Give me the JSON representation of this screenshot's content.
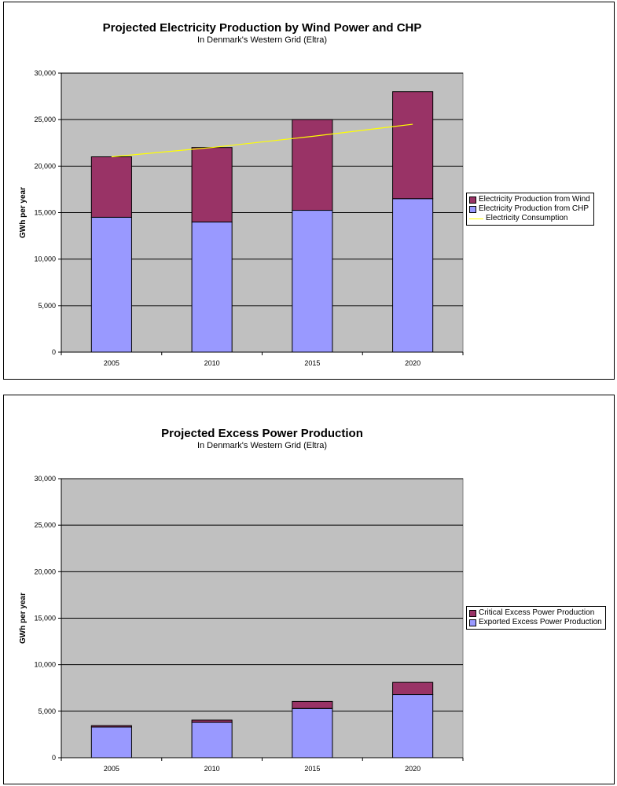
{
  "chart_data": [
    {
      "type": "bar",
      "stacked": true,
      "title": "Projected Electricity Production by Wind Power and CHP",
      "subtitle": "In Denmark's Western Grid (Eltra)",
      "xlabel": "",
      "ylabel": "GWh per year",
      "categories": [
        "2005",
        "2010",
        "2015",
        "2020"
      ],
      "ylim": [
        0,
        30000
      ],
      "yticks": [
        "0",
        "5,000",
        "10,000",
        "15,000",
        "20,000",
        "25,000",
        "30,000"
      ],
      "grid": true,
      "legend_position": "right",
      "series": [
        {
          "name": "Electricity Production from CHP",
          "kind": "bar",
          "color": "#9999FF",
          "values": [
            14500,
            14000,
            15250,
            16500
          ]
        },
        {
          "name": "Electricity Production from Wind",
          "kind": "bar",
          "color": "#993366",
          "values": [
            6500,
            8000,
            9750,
            11500
          ]
        },
        {
          "name": "Electricity Consumption",
          "kind": "line",
          "color": "#FFFF00",
          "values": [
            21000,
            22000,
            23200,
            24500
          ]
        }
      ],
      "legend_order": [
        "Electricity Production from Wind",
        "Electricity Production from CHP",
        "Electricity Consumption"
      ]
    },
    {
      "type": "bar",
      "stacked": true,
      "title": "Projected Excess Power Production",
      "subtitle": "In Denmark's Western Grid (Eltra)",
      "xlabel": "",
      "ylabel": "GWh per year",
      "categories": [
        "2005",
        "2010",
        "2015",
        "2020"
      ],
      "ylim": [
        0,
        30000
      ],
      "yticks": [
        "0",
        "5,000",
        "10,000",
        "15,000",
        "20,000",
        "25,000",
        "30,000"
      ],
      "grid": true,
      "legend_position": "right",
      "series": [
        {
          "name": "Exported Excess Power Production",
          "kind": "bar",
          "color": "#9999FF",
          "values": [
            3300,
            3800,
            5300,
            6800
          ]
        },
        {
          "name": "Critical Excess Power Production",
          "kind": "bar",
          "color": "#993366",
          "values": [
            150,
            250,
            750,
            1300
          ]
        }
      ],
      "legend_order": [
        "Critical Excess Power Production",
        "Exported Excess Power Production"
      ]
    }
  ]
}
